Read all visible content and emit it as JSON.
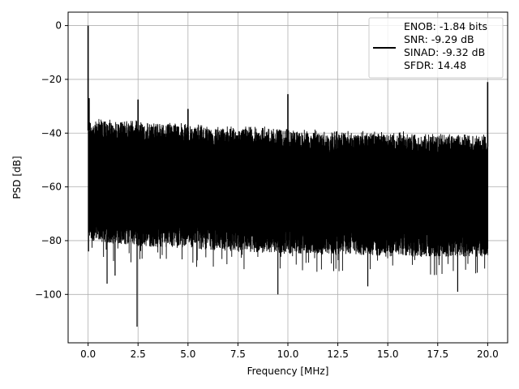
{
  "chart_data": {
    "type": "line",
    "title": "",
    "xlabel": "Frequency [MHz]",
    "ylabel": "PSD [dB]",
    "xlim": [
      -1,
      21
    ],
    "ylim": [
      -118,
      5
    ],
    "xticks": [
      0,
      2.5,
      5,
      7.5,
      10,
      12.5,
      15,
      17.5,
      20
    ],
    "xtick_labels": [
      "0.0",
      "2.5",
      "5.0",
      "7.5",
      "10.0",
      "12.5",
      "15.0",
      "17.5",
      "20.0"
    ],
    "yticks": [
      0,
      -20,
      -40,
      -60,
      -80,
      -100
    ],
    "ytick_labels": [
      "0",
      "−20",
      "−40",
      "−60",
      "−80",
      "−100"
    ],
    "grid": true,
    "legend_position": "top-right",
    "series": [
      {
        "color": "#000000",
        "noise_floor_top": [
          [
            0.05,
            -35
          ],
          [
            2.5,
            -36
          ],
          [
            5,
            -37
          ],
          [
            7.5,
            -38
          ],
          [
            10,
            -39
          ],
          [
            12.5,
            -40
          ],
          [
            15,
            -40
          ],
          [
            17.5,
            -41
          ],
          [
            20,
            -41
          ]
        ],
        "noise_floor_bottom": [
          [
            0.05,
            -77
          ],
          [
            2.5,
            -79
          ],
          [
            5,
            -80
          ],
          [
            7.5,
            -81
          ],
          [
            10,
            -82
          ],
          [
            12.5,
            -82
          ],
          [
            15,
            -83
          ],
          [
            17.5,
            -83
          ],
          [
            20,
            -83
          ]
        ],
        "spikes": [
          [
            0,
            0
          ],
          [
            0.05,
            -27
          ],
          [
            2.5,
            -27.5
          ],
          [
            5,
            -31
          ],
          [
            10,
            -25.5
          ],
          [
            20,
            -21
          ]
        ],
        "deep_dips": [
          [
            2.45,
            -112
          ],
          [
            9.5,
            -100
          ],
          [
            0.95,
            -96
          ],
          [
            1.35,
            -93
          ],
          [
            18.5,
            -99
          ],
          [
            14,
            -97
          ]
        ]
      }
    ]
  },
  "legend": {
    "lines": [
      "ENOB: -1.84 bits",
      "SNR: -9.29 dB",
      "SINAD: -9.32 dB",
      "SFDR: 14.48"
    ]
  }
}
